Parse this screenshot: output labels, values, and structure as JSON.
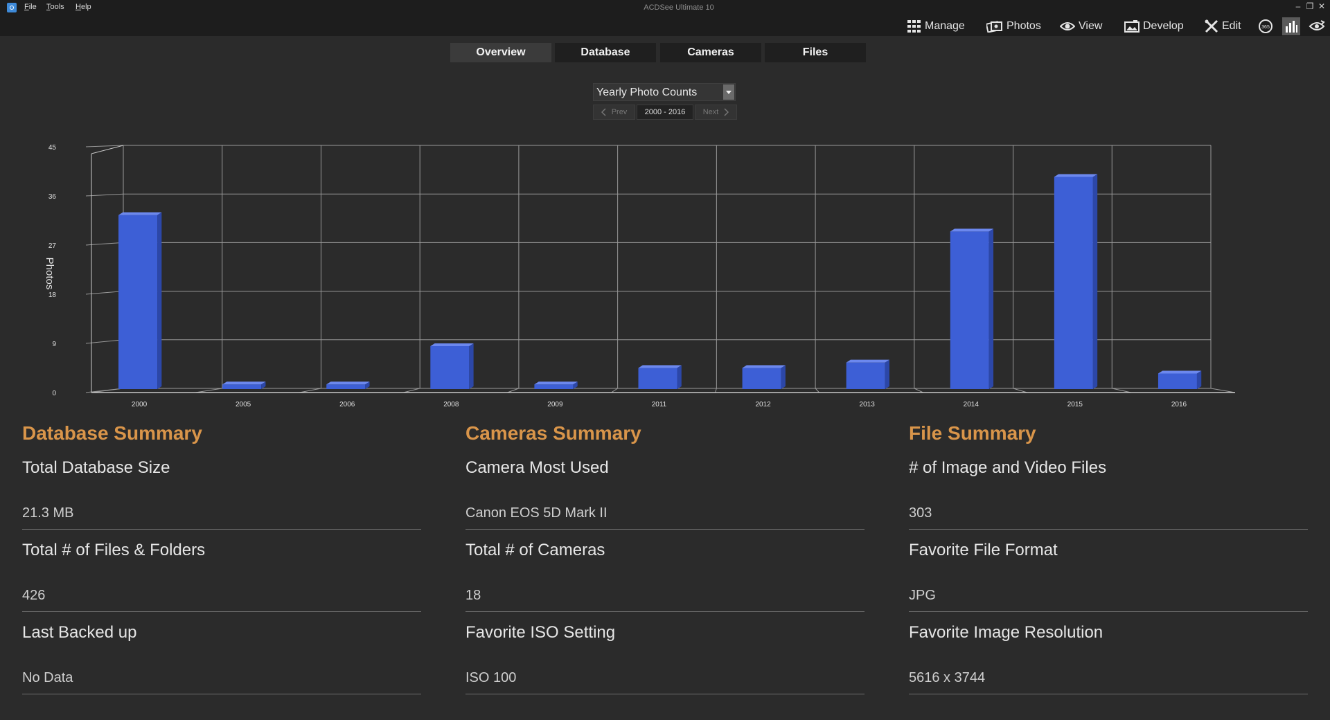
{
  "window": {
    "title": "ACDSee Ultimate 10",
    "menu": [
      {
        "first": "F",
        "rest": "ile"
      },
      {
        "first": "T",
        "rest": "ools"
      },
      {
        "first": "H",
        "rest": "elp"
      }
    ]
  },
  "modes": {
    "manage": "Manage",
    "photos": "Photos",
    "view": "View",
    "develop": "Develop",
    "edit": "Edit",
    "online_badge": "365"
  },
  "tabs": [
    "Overview",
    "Database",
    "Cameras",
    "Files"
  ],
  "chart_controls": {
    "selected": "Yearly Photo Counts",
    "prev": "Prev",
    "range": "2000 - 2016",
    "next": "Next"
  },
  "chart_data": {
    "type": "bar",
    "style": "3d",
    "ylabel": "Photos",
    "ylim": [
      0,
      45
    ],
    "yticks": [
      0,
      9,
      18,
      27,
      36,
      45
    ],
    "categories": [
      "2000",
      "2005",
      "2006",
      "2008",
      "2009",
      "2011",
      "2012",
      "2013",
      "2014",
      "2015",
      "2016"
    ],
    "values": [
      33,
      2,
      2,
      9,
      2,
      5,
      5,
      6,
      30,
      40,
      4
    ],
    "bar_color": "#3d5fd6",
    "grid": true
  },
  "summaries": [
    {
      "title": "Database Summary",
      "items": [
        {
          "label": "Total Database Size",
          "value": "21.3 MB"
        },
        {
          "label": "Total # of Files & Folders",
          "value": "426"
        },
        {
          "label": "Last Backed up",
          "value": "No Data"
        }
      ]
    },
    {
      "title": "Cameras Summary",
      "items": [
        {
          "label": "Camera Most Used",
          "value": "Canon EOS 5D Mark II"
        },
        {
          "label": "Total # of Cameras",
          "value": "18"
        },
        {
          "label": "Favorite ISO Setting",
          "value": "ISO 100"
        }
      ]
    },
    {
      "title": "File Summary",
      "items": [
        {
          "label": "# of Image and Video Files",
          "value": "303"
        },
        {
          "label": "Favorite File Format",
          "value": "JPG"
        },
        {
          "label": "Favorite Image Resolution",
          "value": "5616 x 3744"
        }
      ]
    }
  ],
  "colors": {
    "background": "#2b2b2b",
    "bar": "#1d1d1d",
    "accent": "#d9954a"
  }
}
